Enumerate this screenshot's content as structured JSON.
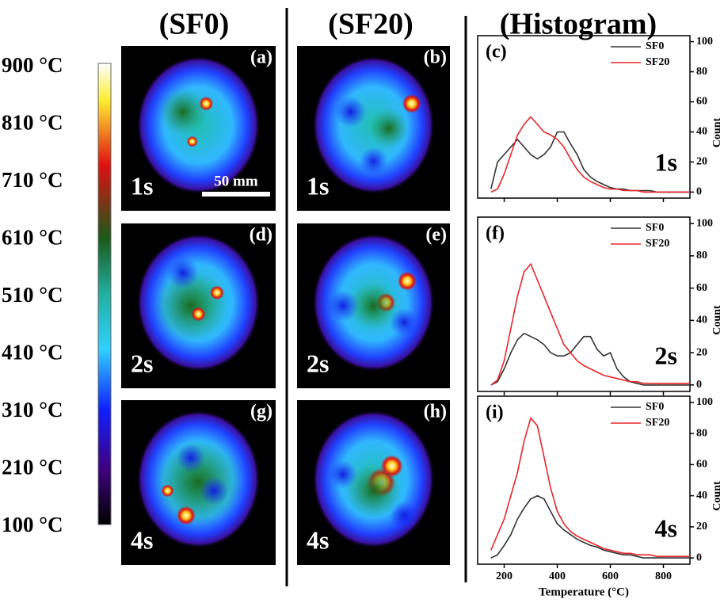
{
  "column_titles": [
    "(SF0)",
    "(SF20)",
    "(Histogram)"
  ],
  "colorbar_labels": [
    "900 °C",
    "810 °C",
    "710 °C",
    "610 °C",
    "510 °C",
    "410 °C",
    "310 °C",
    "210 °C",
    "100 °C"
  ],
  "images": [
    {
      "label": "(a)",
      "time": "1s",
      "scale_bar": "50 mm"
    },
    {
      "label": "(b)",
      "time": "1s"
    },
    {
      "label": "(d)",
      "time": "2s"
    },
    {
      "label": "(e)",
      "time": "2s"
    },
    {
      "label": "(g)",
      "time": "4s"
    },
    {
      "label": "(h)",
      "time": "4s"
    }
  ],
  "chart_data": [
    {
      "type": "line",
      "panel_label": "(c)",
      "time_label": "1s",
      "ylabel": "Count",
      "legend": "upper right",
      "x": [
        150,
        175,
        200,
        225,
        250,
        275,
        300,
        325,
        350,
        375,
        400,
        425,
        450,
        475,
        500,
        525,
        550,
        575,
        600,
        625,
        650,
        675,
        700,
        725,
        750,
        775,
        800,
        825,
        850,
        875,
        900
      ],
      "series": [
        {
          "name": "SF0",
          "color": "#333333",
          "values": [
            2,
            20,
            25,
            30,
            35,
            30,
            25,
            22,
            25,
            30,
            40,
            40,
            32,
            25,
            15,
            10,
            7,
            5,
            3,
            2,
            2,
            1,
            1,
            1,
            1,
            0,
            0,
            0,
            0,
            0,
            0
          ]
        },
        {
          "name": "SF20",
          "color": "#e8262a",
          "values": [
            0,
            2,
            12,
            25,
            38,
            45,
            50,
            45,
            40,
            38,
            35,
            30,
            22,
            15,
            10,
            7,
            5,
            3,
            2,
            2,
            1,
            1,
            1,
            0,
            0,
            0,
            0,
            0,
            0,
            0,
            0
          ]
        }
      ],
      "xlim": [
        100,
        900
      ],
      "ylim": [
        -4,
        104
      ],
      "yticks": [
        0,
        20,
        40,
        60,
        80,
        100
      ],
      "xticks": [
        200,
        400,
        600,
        800
      ]
    },
    {
      "type": "line",
      "panel_label": "(f)",
      "time_label": "2s",
      "ylabel": "Count",
      "legend": "upper right",
      "x": [
        150,
        175,
        200,
        225,
        250,
        275,
        300,
        325,
        350,
        375,
        400,
        425,
        450,
        475,
        500,
        525,
        550,
        575,
        600,
        625,
        650,
        675,
        700,
        725,
        750,
        775,
        800,
        825,
        850,
        875,
        900
      ],
      "series": [
        {
          "name": "SF0",
          "color": "#333333",
          "values": [
            0,
            2,
            10,
            20,
            28,
            32,
            30,
            28,
            25,
            20,
            18,
            18,
            20,
            25,
            30,
            30,
            22,
            18,
            20,
            10,
            5,
            2,
            1,
            0,
            0,
            0,
            0,
            0,
            0,
            0,
            0
          ]
        },
        {
          "name": "SF20",
          "color": "#e8262a",
          "values": [
            0,
            3,
            15,
            35,
            55,
            70,
            75,
            65,
            55,
            45,
            35,
            25,
            20,
            15,
            12,
            10,
            8,
            6,
            5,
            4,
            3,
            2,
            2,
            1,
            1,
            1,
            1,
            1,
            1,
            1,
            1
          ]
        }
      ],
      "xlim": [
        100,
        900
      ],
      "ylim": [
        -4,
        104
      ],
      "yticks": [
        0,
        20,
        40,
        60,
        80,
        100
      ],
      "xticks": [
        200,
        400,
        600,
        800
      ]
    },
    {
      "type": "line",
      "panel_label": "(i)",
      "time_label": "4s",
      "ylabel": "Count",
      "xlabel": "Temperature (°C)",
      "legend": "upper right",
      "x": [
        150,
        175,
        200,
        225,
        250,
        275,
        300,
        325,
        350,
        375,
        400,
        425,
        450,
        475,
        500,
        525,
        550,
        575,
        600,
        625,
        650,
        675,
        700,
        725,
        750,
        775,
        800,
        825,
        850,
        875,
        900
      ],
      "series": [
        {
          "name": "SF0",
          "color": "#333333",
          "values": [
            0,
            2,
            8,
            15,
            25,
            32,
            38,
            40,
            38,
            30,
            22,
            18,
            15,
            12,
            10,
            8,
            7,
            5,
            4,
            3,
            2,
            2,
            1,
            0,
            0,
            0,
            0,
            0,
            0,
            0,
            0
          ]
        },
        {
          "name": "SF20",
          "color": "#e8262a",
          "values": [
            5,
            15,
            25,
            40,
            55,
            75,
            90,
            85,
            65,
            45,
            30,
            22,
            17,
            14,
            12,
            10,
            8,
            6,
            5,
            4,
            3,
            3,
            2,
            2,
            2,
            1,
            1,
            1,
            1,
            1,
            1
          ]
        }
      ],
      "xlim": [
        100,
        900
      ],
      "ylim": [
        -4,
        104
      ],
      "yticks": [
        0,
        20,
        40,
        60,
        80,
        100
      ],
      "xticks": [
        200,
        400,
        600,
        800
      ]
    }
  ]
}
